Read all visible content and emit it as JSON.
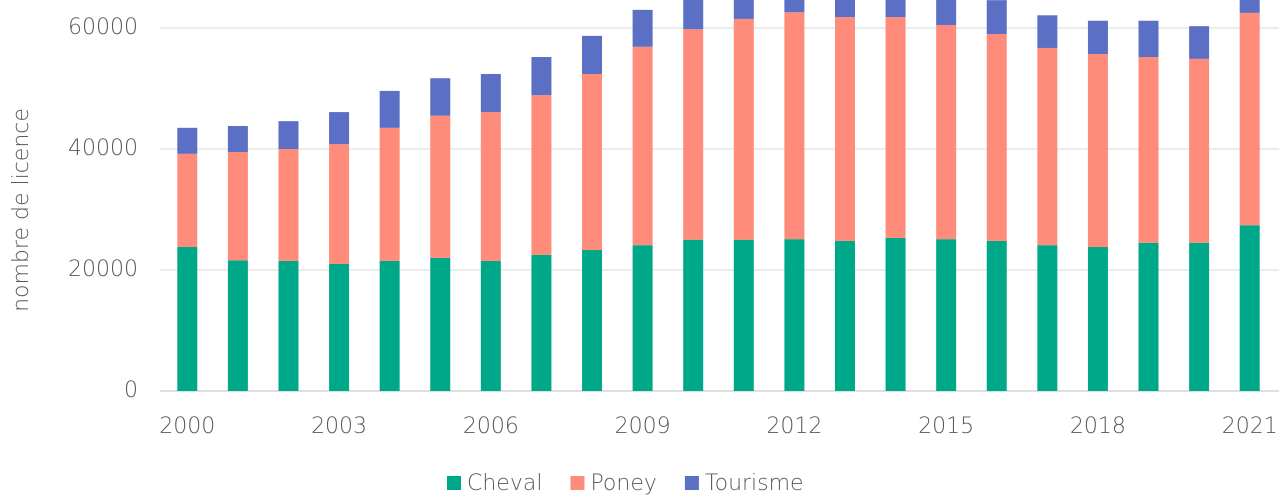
{
  "chart_data": {
    "type": "stacked_bar",
    "y_label": "nombre de licence",
    "categories": [
      "2000",
      null,
      null,
      "2003",
      null,
      null,
      "2006",
      null,
      null,
      "2009",
      null,
      null,
      "2012",
      null,
      null,
      "2015",
      null,
      null,
      "2018",
      null,
      null,
      "2021"
    ],
    "series": [
      {
        "name": "Cheval",
        "color": "#00a88a",
        "values": [
          23800,
          21600,
          21500,
          21000,
          21500,
          22000,
          21500,
          22500,
          23300,
          24100,
          25000,
          25000,
          25100,
          24800,
          25300,
          25100,
          24800,
          24100,
          23800,
          24500,
          24500,
          27400
        ]
      },
      {
        "name": "Poney",
        "color": "#ff8c7a",
        "values": [
          15400,
          17900,
          18500,
          19800,
          22000,
          23500,
          24600,
          26400,
          29100,
          32800,
          34800,
          36500,
          37500,
          37000,
          36500,
          35400,
          34200,
          32600,
          31900,
          30700,
          30400,
          35100
        ]
      },
      {
        "name": "Tourisme",
        "color": "#5b6fc4",
        "values": [
          4300,
          4300,
          4600,
          5300,
          6100,
          6200,
          6300,
          6300,
          6300,
          6100,
          5700,
          5600,
          5500,
          5500,
          5500,
          5500,
          5600,
          5400,
          5500,
          6000,
          5400,
          5500
        ]
      }
    ],
    "ylim": [
      0,
      70000
    ],
    "yticks": [
      0,
      20000,
      40000,
      60000
    ],
    "grid": true,
    "legend": "bottom"
  }
}
